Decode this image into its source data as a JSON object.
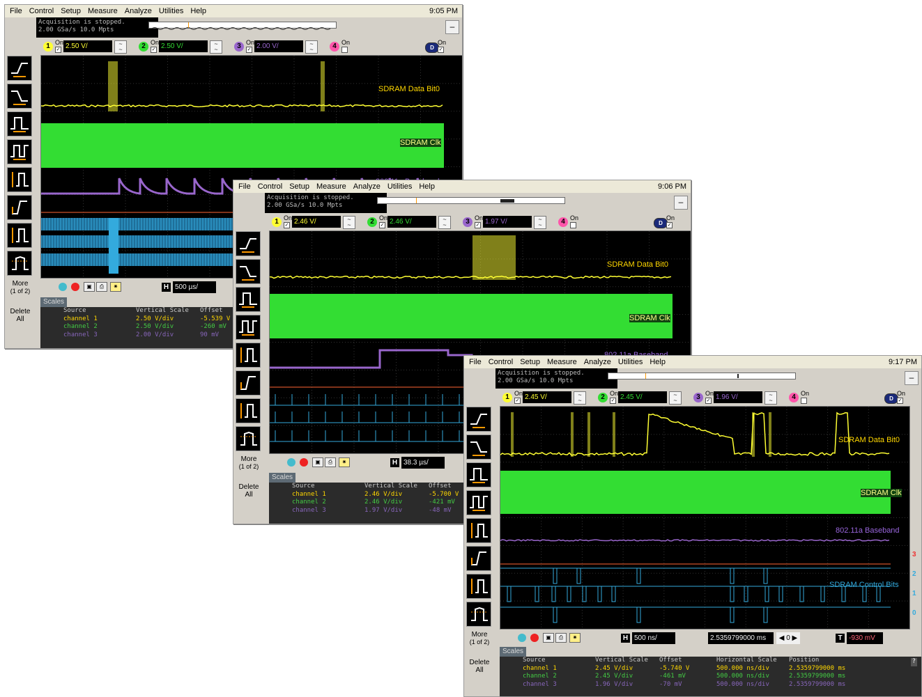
{
  "menu": [
    "File",
    "Control",
    "Setup",
    "Measure",
    "Analyze",
    "Utilities",
    "Help"
  ],
  "side": {
    "more_label": "More",
    "more_page": "(1 of 2)",
    "delete_label": "Delete",
    "delete_sub": "All"
  },
  "common": {
    "on": "On",
    "scales_tab": "Scales",
    "hdr_source": "Source",
    "hdr_vscale": "Vertical Scale",
    "hdr_offset": "Offset",
    "hdr_hscale": "Horizontal Scale",
    "hdr_position": "Position",
    "ch1_name": "channel 1",
    "ch2_name": "channel 2",
    "ch3_name": "channel 3",
    "h_letter": "H",
    "t_letter": "T",
    "d_letter": "D",
    "minimize": "–"
  },
  "colors": {
    "ch1": "#ffff33",
    "ch2": "#33dd33",
    "ch3": "#9966cc",
    "digital": "#33aadd",
    "label_yellow": "#ffd700",
    "label_purple": "#9966dd",
    "label_blue": "#33aadd"
  },
  "windows": [
    {
      "time": "9:05 PM",
      "status_line1": "Acquisition is stopped.",
      "status_line2": "2.00 GSa/s   10.0 Mpts",
      "ch1_scale": "2.50 V/",
      "ch2_scale": "2.50 V/",
      "ch3_scale": "2.00 V/",
      "labels": {
        "data": "SDRAM Data Bit0",
        "clk": "SDRAM Clk",
        "baseband": "802.11a Baseband"
      },
      "h_scale": "500 µs/",
      "rows": [
        {
          "vscale": "2.50 V/div",
          "offset": "-5.539 V"
        },
        {
          "vscale": "2.50 V/div",
          "offset": "-260 mV"
        },
        {
          "vscale": "2.00 V/div",
          "offset": "90 mV"
        }
      ]
    },
    {
      "time": "9:06 PM",
      "status_line1": "Acquisition is stopped.",
      "status_line2": "2.00 GSa/s   10.0 Mpts",
      "ch1_scale": "2.46 V/",
      "ch2_scale": "2.46 V/",
      "ch3_scale": "1.97 V/",
      "labels": {
        "data": "SDRAM Data Bit0",
        "clk": "SDRAM Clk",
        "baseband": "802.11a Baseband"
      },
      "h_scale": "38.3 µs/",
      "rows": [
        {
          "vscale": "2.46 V/div",
          "offset": "-5.700 V"
        },
        {
          "vscale": "2.46 V/div",
          "offset": "-421 mV"
        },
        {
          "vscale": "1.97 V/div",
          "offset": "-48 mV"
        }
      ]
    },
    {
      "time": "9:17 PM",
      "status_line1": "Acquisition is stopped.",
      "status_line2": "2.00 GSa/s   10.0 Mpts",
      "ch1_scale": "2.45 V/",
      "ch2_scale": "2.45 V/",
      "ch3_scale": "1.96 V/",
      "labels": {
        "data": "SDRAM Data Bit0",
        "clk": "SDRAM Clk",
        "baseband": "802.11a Baseband",
        "control": "SDRAM Control Bits"
      },
      "digital_markers": [
        "3",
        "2",
        "1",
        "0"
      ],
      "h_scale": "500 ns/",
      "position": "2.5359799000 ms",
      "trigger_level": "-930 mV",
      "pos_value": "0",
      "rows": [
        {
          "vscale": "2.45 V/div",
          "offset": "-5.740 V",
          "hscale": "500.000 ns/div",
          "position": "2.5359799000 ms"
        },
        {
          "vscale": "2.45 V/div",
          "offset": "-461 mV",
          "hscale": "500.000 ns/div",
          "position": "2.5359799000 ms"
        },
        {
          "vscale": "1.96 V/div",
          "offset": "-70 mV",
          "hscale": "500.000 ns/div",
          "position": "2.5359799000 ms"
        }
      ],
      "help": "?"
    }
  ]
}
